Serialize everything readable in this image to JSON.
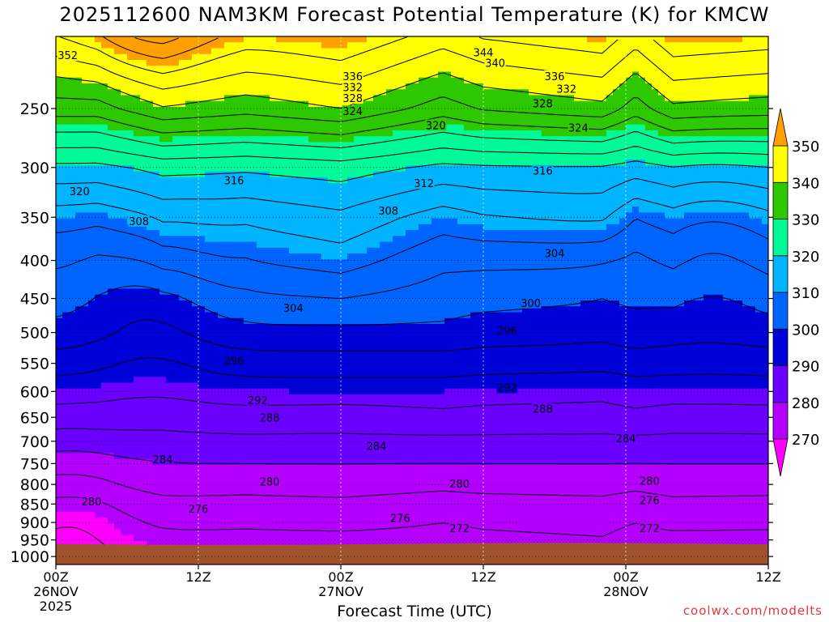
{
  "page": {
    "title": "2025112600 NAM3KM Forecast Potential Temperature (K) for KMCW",
    "xlabel": "Forecast Time (UTC)",
    "credit": "coolwx.com/modelts"
  },
  "chart_data": {
    "type": "contour",
    "title": "2025112600 NAM3KM Forecast Potential Temperature (K) for KMCW",
    "xlabel": "Forecast Time (UTC)",
    "ylabel": "",
    "x_ticks": [
      {
        "hour": 0,
        "lines": [
          "00Z",
          "26NOV",
          "2025"
        ]
      },
      {
        "hour": 12,
        "lines": [
          "12Z"
        ]
      },
      {
        "hour": 24,
        "lines": [
          "00Z",
          "27NOV"
        ]
      },
      {
        "hour": 36,
        "lines": [
          "12Z"
        ]
      },
      {
        "hour": 48,
        "lines": [
          "00Z",
          "28NOV"
        ]
      },
      {
        "hour": 60,
        "lines": [
          "12Z"
        ]
      }
    ],
    "xlim": [
      0,
      60
    ],
    "y_axis_pressure_hPa": [
      250,
      300,
      350,
      400,
      450,
      500,
      550,
      600,
      650,
      700,
      750,
      800,
      850,
      900,
      950,
      1000
    ],
    "ylim": [
      1025,
      200
    ],
    "y_scale": "log-pressure",
    "grid": "dotted",
    "colorbar": {
      "levels": [
        270,
        280,
        290,
        300,
        310,
        320,
        330,
        340,
        350
      ],
      "colors": [
        "#ff00ff",
        "#b400ff",
        "#6a00ff",
        "#0000d8",
        "#0064ff",
        "#00b4ff",
        "#00fa98",
        "#2ec800",
        "#ffff00",
        "#ffa000"
      ],
      "extend": "both"
    },
    "ground_color": "#a0522d",
    "contour_labels": [
      {
        "t": 1.0,
        "p": 212,
        "v": "352"
      },
      {
        "t": 36.0,
        "p": 210,
        "v": "344"
      },
      {
        "t": 37.0,
        "p": 217,
        "v": "340"
      },
      {
        "t": 25.0,
        "p": 226,
        "v": "336"
      },
      {
        "t": 25.0,
        "p": 234,
        "v": "332"
      },
      {
        "t": 25.0,
        "p": 242,
        "v": "328"
      },
      {
        "t": 25.0,
        "p": 252,
        "v": "324"
      },
      {
        "t": 42.0,
        "p": 226,
        "v": "336"
      },
      {
        "t": 43.0,
        "p": 235,
        "v": "332"
      },
      {
        "t": 41.0,
        "p": 246,
        "v": "328"
      },
      {
        "t": 44.0,
        "p": 265,
        "v": "324"
      },
      {
        "t": 32.0,
        "p": 263,
        "v": "320"
      },
      {
        "t": 31.0,
        "p": 315,
        "v": "312"
      },
      {
        "t": 41.0,
        "p": 303,
        "v": "316"
      },
      {
        "t": 15.0,
        "p": 312,
        "v": "316"
      },
      {
        "t": 2.0,
        "p": 323,
        "v": "320"
      },
      {
        "t": 7.0,
        "p": 354,
        "v": "308"
      },
      {
        "t": 28.0,
        "p": 343,
        "v": "308"
      },
      {
        "t": 42.0,
        "p": 391,
        "v": "304"
      },
      {
        "t": 20.0,
        "p": 463,
        "v": "304"
      },
      {
        "t": 40.0,
        "p": 456,
        "v": "300"
      },
      {
        "t": 38.0,
        "p": 497,
        "v": "296"
      },
      {
        "t": 15.0,
        "p": 545,
        "v": "296"
      },
      {
        "t": 38.0,
        "p": 593,
        "v": "292"
      },
      {
        "t": 17.0,
        "p": 616,
        "v": "292"
      },
      {
        "t": 41.0,
        "p": 633,
        "v": "288"
      },
      {
        "t": 18.0,
        "p": 650,
        "v": "288"
      },
      {
        "t": 48.0,
        "p": 693,
        "v": "284"
      },
      {
        "t": 27.0,
        "p": 710,
        "v": "284"
      },
      {
        "t": 9.0,
        "p": 740,
        "v": "284"
      },
      {
        "t": 18.0,
        "p": 793,
        "v": "280"
      },
      {
        "t": 34.0,
        "p": 798,
        "v": "280"
      },
      {
        "t": 50.0,
        "p": 791,
        "v": "280"
      },
      {
        "t": 50.0,
        "p": 840,
        "v": "276"
      },
      {
        "t": 12.0,
        "p": 862,
        "v": "276"
      },
      {
        "t": 29.0,
        "p": 887,
        "v": "276"
      },
      {
        "t": 3.0,
        "p": 843,
        "v": "280"
      },
      {
        "t": 34.0,
        "p": 916,
        "v": "272"
      },
      {
        "t": 50.0,
        "p": 916,
        "v": "272"
      }
    ]
  }
}
